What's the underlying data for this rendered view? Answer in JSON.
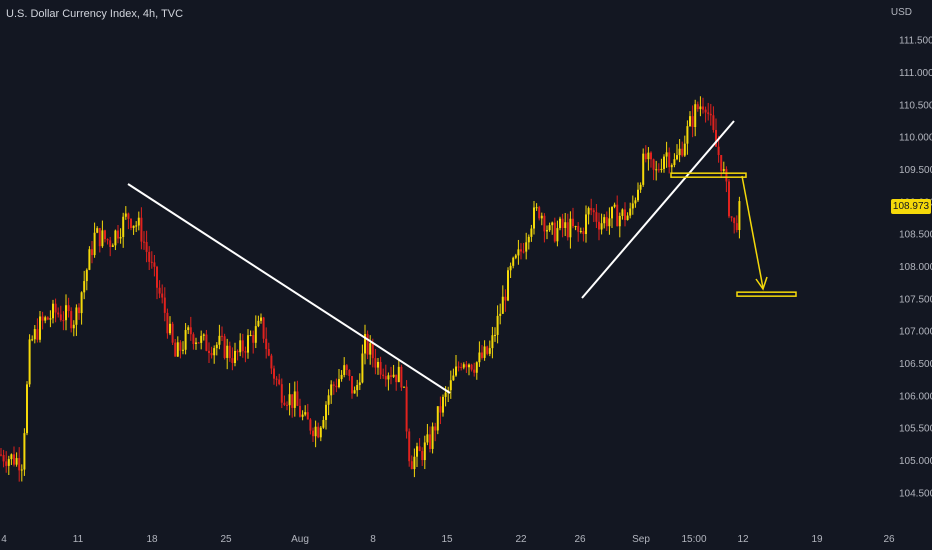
{
  "header": {
    "title": "U.S. Dollar Currency Index, 4h, TVC",
    "unit": "USD"
  },
  "last_price": "108.973",
  "colors": {
    "background": "#131722",
    "up": "#f5d90a",
    "down": "#e0221e",
    "annotation": "#ffffff",
    "target": "#f5d90a"
  },
  "chart_data": {
    "type": "candlestick",
    "yticks": [
      "104.500",
      "105.000",
      "105.500",
      "106.000",
      "106.500",
      "107.000",
      "107.500",
      "108.000",
      "108.500",
      "109.000",
      "109.500",
      "110.000",
      "110.500",
      "111.000",
      "111.500"
    ],
    "xticks": [
      "4",
      "11",
      "18",
      "25",
      "Aug",
      "8",
      "15",
      "22",
      "26",
      "Sep",
      "15:00",
      "12",
      "19",
      "26"
    ],
    "ylim": [
      104.25,
      111.75
    ],
    "path_points": [
      [
        0,
        105.1
      ],
      [
        22,
        105.0
      ],
      [
        30,
        106.8
      ],
      [
        40,
        107.1
      ],
      [
        55,
        107.3
      ],
      [
        75,
        107.2
      ],
      [
        95,
        108.5
      ],
      [
        110,
        108.4
      ],
      [
        128,
        108.8
      ],
      [
        140,
        108.6
      ],
      [
        155,
        107.8
      ],
      [
        165,
        107.3
      ],
      [
        175,
        106.6
      ],
      [
        190,
        107.0
      ],
      [
        205,
        106.8
      ],
      [
        220,
        106.8
      ],
      [
        235,
        106.6
      ],
      [
        250,
        106.9
      ],
      [
        262,
        107.1
      ],
      [
        270,
        106.5
      ],
      [
        280,
        106.1
      ],
      [
        295,
        105.9
      ],
      [
        305,
        105.6
      ],
      [
        318,
        105.5
      ],
      [
        330,
        106.1
      ],
      [
        345,
        106.4
      ],
      [
        355,
        106.0
      ],
      [
        365,
        106.8
      ],
      [
        378,
        106.5
      ],
      [
        390,
        106.4
      ],
      [
        402,
        106.3
      ],
      [
        410,
        105.0
      ],
      [
        420,
        105.1
      ],
      [
        430,
        105.3
      ],
      [
        440,
        105.8
      ],
      [
        452,
        106.2
      ],
      [
        462,
        106.6
      ],
      [
        475,
        106.5
      ],
      [
        490,
        106.7
      ],
      [
        500,
        107.3
      ],
      [
        510,
        107.9
      ],
      [
        520,
        108.2
      ],
      [
        530,
        108.7
      ],
      [
        540,
        108.9
      ],
      [
        550,
        108.5
      ],
      [
        560,
        108.6
      ],
      [
        570,
        108.6
      ],
      [
        580,
        108.5
      ],
      [
        590,
        108.9
      ],
      [
        600,
        108.7
      ],
      [
        615,
        108.8
      ],
      [
        630,
        108.8
      ],
      [
        645,
        109.7
      ],
      [
        655,
        109.4
      ],
      [
        665,
        109.8
      ],
      [
        675,
        109.6
      ],
      [
        685,
        110.0
      ],
      [
        695,
        110.4
      ],
      [
        705,
        110.6
      ],
      [
        715,
        109.9
      ],
      [
        722,
        109.6
      ],
      [
        728,
        109.0
      ],
      [
        734,
        108.6
      ],
      [
        742,
        108.973
      ]
    ],
    "annotations": {
      "lines": [
        {
          "name": "downtrend-line",
          "from": [
            "Jul 16",
            109.25
          ],
          "to": [
            "Aug 14",
            106.1
          ]
        },
        {
          "name": "uptrend-line",
          "from": [
            "Aug 27",
            107.5
          ],
          "to": [
            "Sep 10",
            110.2
          ]
        }
      ],
      "support_level": 109.42,
      "target_level": 107.58
    }
  }
}
